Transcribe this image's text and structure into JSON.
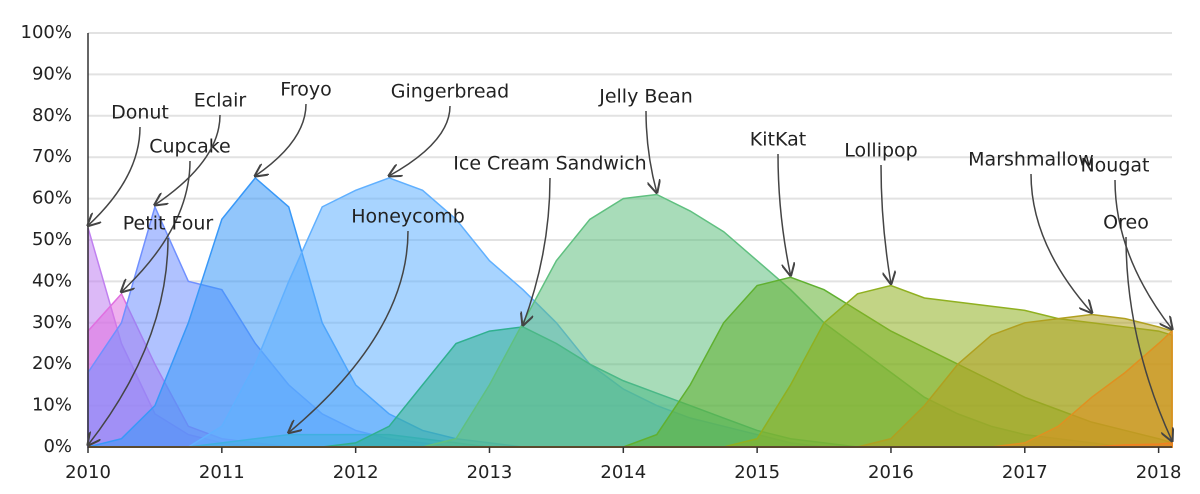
{
  "chart_data": {
    "type": "area",
    "x": [
      2010,
      2010.25,
      2010.5,
      2010.75,
      2011,
      2011.25,
      2011.5,
      2011.75,
      2012,
      2012.25,
      2012.5,
      2012.75,
      2013,
      2013.25,
      2013.5,
      2013.75,
      2014,
      2014.25,
      2014.5,
      2014.75,
      2015,
      2015.25,
      2015.5,
      2015.75,
      2016,
      2016.25,
      2016.5,
      2016.75,
      2017,
      2017.25,
      2017.5,
      2017.75,
      2018,
      2018.1
    ],
    "xlim": [
      2010,
      2018.1
    ],
    "xticks": [
      2010,
      2011,
      2012,
      2013,
      2014,
      2015,
      2016,
      2017,
      2018
    ],
    "ylim": [
      0,
      100
    ],
    "yticks": [
      {
        "value": 0,
        "label": "0%"
      },
      {
        "value": 10,
        "label": "10%"
      },
      {
        "value": 20,
        "label": "20%"
      },
      {
        "value": 30,
        "label": "30%"
      },
      {
        "value": 40,
        "label": "40%"
      },
      {
        "value": 50,
        "label": "50%"
      },
      {
        "value": 60,
        "label": "60%"
      },
      {
        "value": 70,
        "label": "70%"
      },
      {
        "value": 80,
        "label": "80%"
      },
      {
        "value": 90,
        "label": "90%"
      },
      {
        "value": 100,
        "label": "100%"
      }
    ],
    "grid": true,
    "series": [
      {
        "name": "Donut",
        "color": "#c080f0",
        "values": [
          53,
          25,
          8,
          3,
          1,
          0,
          0,
          0,
          0,
          0,
          0,
          0,
          0,
          0,
          0,
          0,
          0,
          0,
          0,
          0,
          0,
          0,
          0,
          0,
          0,
          0,
          0,
          0,
          0,
          0,
          0,
          0,
          0,
          0
        ]
      },
      {
        "name": "Cupcake",
        "color": "#e070e0",
        "values": [
          28,
          37,
          20,
          5,
          2,
          1,
          0,
          0,
          0,
          0,
          0,
          0,
          0,
          0,
          0,
          0,
          0,
          0,
          0,
          0,
          0,
          0,
          0,
          0,
          0,
          0,
          0,
          0,
          0,
          0,
          0,
          0,
          0,
          0
        ]
      },
      {
        "name": "Petit Four",
        "color": "#a0a0ff",
        "values": [
          0,
          0,
          0,
          0,
          0,
          0,
          0,
          0,
          0,
          0,
          0,
          0,
          0,
          0,
          0,
          0,
          0,
          0,
          0,
          0,
          0,
          0,
          0,
          0,
          0,
          0,
          0,
          0,
          0,
          0,
          0,
          0,
          0,
          0
        ]
      },
      {
        "name": "Eclair",
        "color": "#7090ff",
        "values": [
          18,
          30,
          58,
          40,
          38,
          25,
          15,
          8,
          4,
          2,
          1,
          0,
          0,
          0,
          0,
          0,
          0,
          0,
          0,
          0,
          0,
          0,
          0,
          0,
          0,
          0,
          0,
          0,
          0,
          0,
          0,
          0,
          0,
          0
        ]
      },
      {
        "name": "Froyo",
        "color": "#3898f8",
        "values": [
          0,
          2,
          10,
          30,
          55,
          65,
          58,
          30,
          15,
          8,
          4,
          2,
          1,
          0,
          0,
          0,
          0,
          0,
          0,
          0,
          0,
          0,
          0,
          0,
          0,
          0,
          0,
          0,
          0,
          0,
          0,
          0,
          0,
          0
        ]
      },
      {
        "name": "Gingerbread",
        "color": "#60b0ff",
        "values": [
          0,
          0,
          0,
          0,
          5,
          20,
          40,
          58,
          62,
          65,
          62,
          55,
          45,
          38,
          30,
          20,
          14,
          10,
          7,
          5,
          3,
          1,
          0,
          0,
          0,
          0,
          0,
          0,
          0,
          0,
          0,
          0,
          0,
          0
        ]
      },
      {
        "name": "Honeycomb",
        "color": "#40b0e0",
        "values": [
          0,
          0,
          0,
          0,
          1,
          2,
          3,
          3,
          3,
          3,
          2,
          1,
          0,
          0,
          0,
          0,
          0,
          0,
          0,
          0,
          0,
          0,
          0,
          0,
          0,
          0,
          0,
          0,
          0,
          0,
          0,
          0,
          0,
          0
        ]
      },
      {
        "name": "Ice Cream Sandwich",
        "color": "#30b090",
        "values": [
          0,
          0,
          0,
          0,
          0,
          0,
          0,
          0,
          1,
          5,
          15,
          25,
          28,
          29,
          25,
          20,
          16,
          13,
          10,
          7,
          4,
          2,
          1,
          0,
          0,
          0,
          0,
          0,
          0,
          0,
          0,
          0,
          0,
          0
        ]
      },
      {
        "name": "Jelly Bean",
        "color": "#60c080",
        "values": [
          0,
          0,
          0,
          0,
          0,
          0,
          0,
          0,
          0,
          0,
          0,
          2,
          15,
          30,
          45,
          55,
          60,
          61,
          57,
          52,
          45,
          38,
          30,
          24,
          18,
          12,
          8,
          5,
          3,
          2,
          1,
          0,
          0,
          0
        ]
      },
      {
        "name": "KitKat",
        "color": "#60b030",
        "values": [
          0,
          0,
          0,
          0,
          0,
          0,
          0,
          0,
          0,
          0,
          0,
          0,
          0,
          0,
          0,
          0,
          0,
          3,
          15,
          30,
          39,
          41,
          38,
          33,
          28,
          24,
          20,
          16,
          12,
          9,
          6,
          4,
          2,
          1
        ]
      },
      {
        "name": "Lollipop",
        "color": "#90b020",
        "values": [
          0,
          0,
          0,
          0,
          0,
          0,
          0,
          0,
          0,
          0,
          0,
          0,
          0,
          0,
          0,
          0,
          0,
          0,
          0,
          0,
          2,
          15,
          30,
          37,
          39,
          36,
          35,
          34,
          33,
          31,
          30,
          29,
          28,
          27
        ]
      },
      {
        "name": "Marshmallow",
        "color": "#b0a020",
        "values": [
          0,
          0,
          0,
          0,
          0,
          0,
          0,
          0,
          0,
          0,
          0,
          0,
          0,
          0,
          0,
          0,
          0,
          0,
          0,
          0,
          0,
          0,
          0,
          0,
          2,
          10,
          20,
          27,
          30,
          31,
          32,
          31,
          29,
          28
        ]
      },
      {
        "name": "Nougat",
        "color": "#e09020",
        "values": [
          0,
          0,
          0,
          0,
          0,
          0,
          0,
          0,
          0,
          0,
          0,
          0,
          0,
          0,
          0,
          0,
          0,
          0,
          0,
          0,
          0,
          0,
          0,
          0,
          0,
          0,
          0,
          0,
          1,
          5,
          12,
          18,
          25,
          28
        ]
      },
      {
        "name": "Oreo",
        "color": "#f08020",
        "values": [
          0,
          0,
          0,
          0,
          0,
          0,
          0,
          0,
          0,
          0,
          0,
          0,
          0,
          0,
          0,
          0,
          0,
          0,
          0,
          0,
          0,
          0,
          0,
          0,
          0,
          0,
          0,
          0,
          0,
          0,
          0,
          0.5,
          0.7,
          1
        ]
      }
    ]
  }
}
